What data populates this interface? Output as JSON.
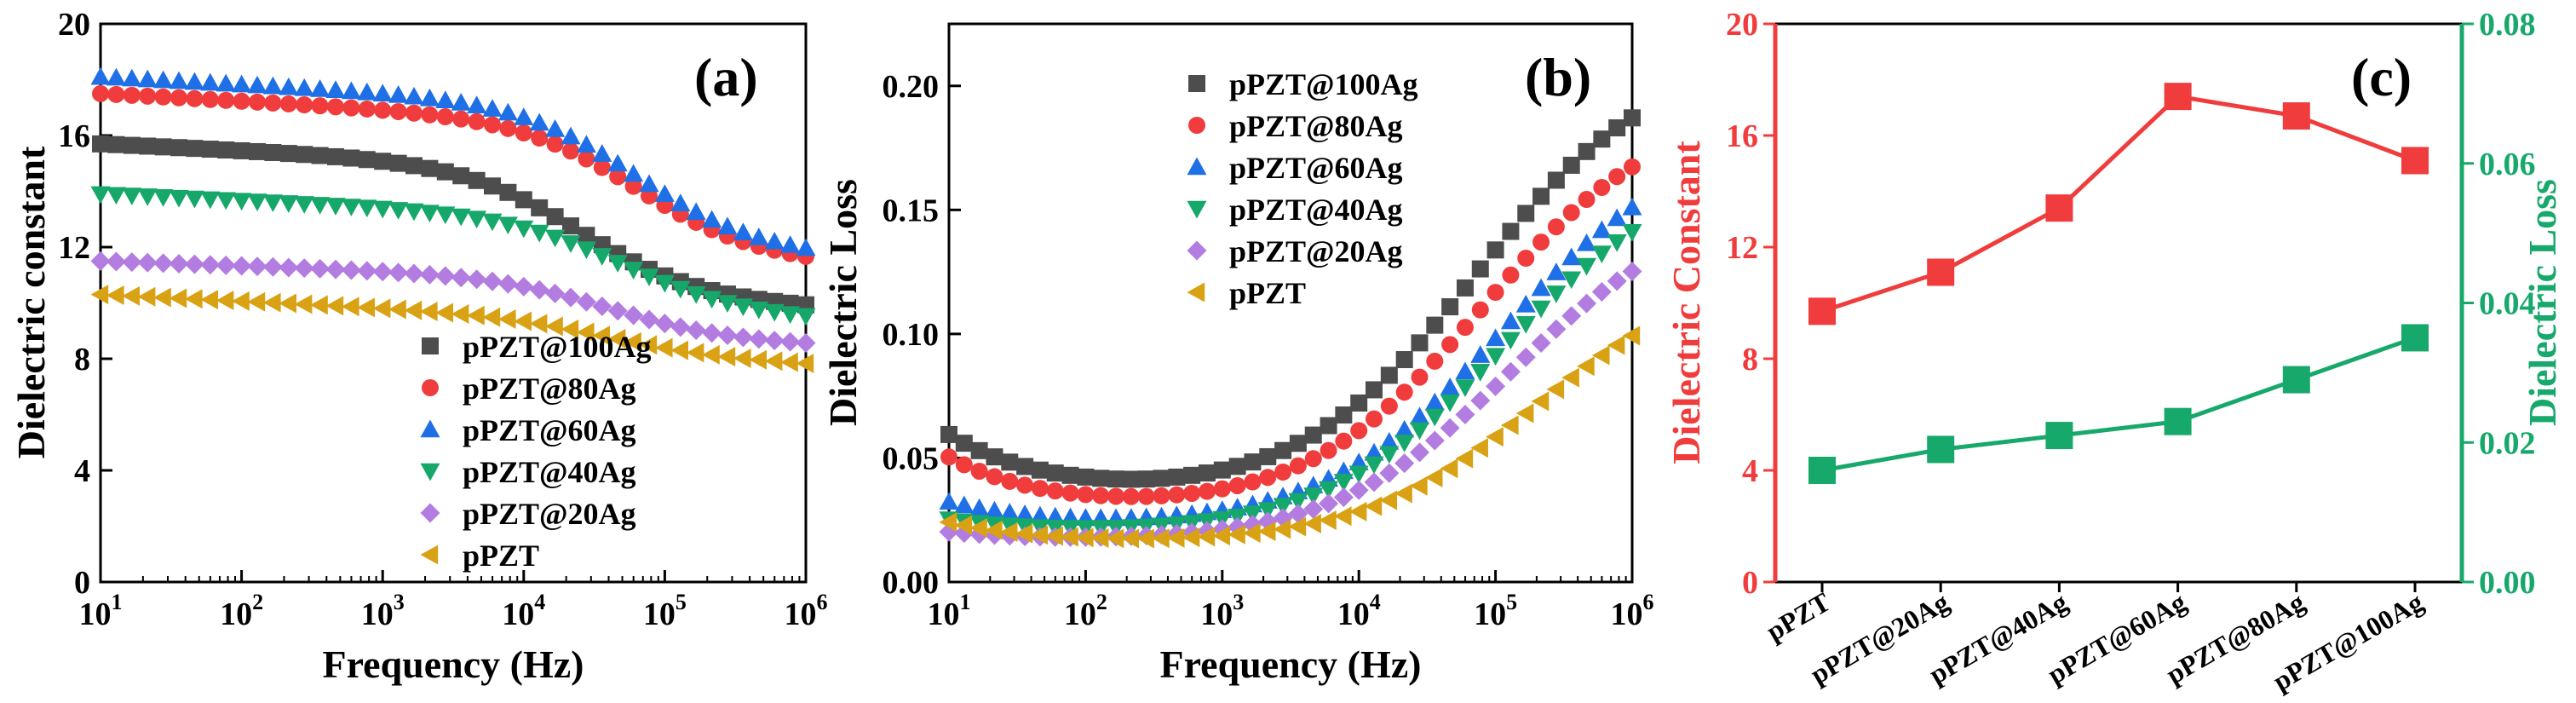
{
  "colors": {
    "pPZT@100Ag": "#4d4d4d",
    "pPZT@80Ag": "#f03c3c",
    "pPZT@60Ag": "#1f6fe6",
    "pPZT@40Ag": "#16a86a",
    "pPZT@20Ag": "#b37ce0",
    "pPZT": "#d9a214",
    "left_axis": "#f03c3c",
    "right_axis": "#17a86b"
  },
  "chart_data": [
    {
      "type": "scatter",
      "panel": "(a)",
      "xlabel": "Frequency (Hz)",
      "ylabel": "Dielectric constant",
      "xscale": "log",
      "xlim": [
        10,
        1000000
      ],
      "ylim": [
        0,
        20
      ],
      "xticks": [
        {
          "base": "10",
          "exp": "1"
        },
        {
          "base": "10",
          "exp": "2"
        },
        {
          "base": "10",
          "exp": "3"
        },
        {
          "base": "10",
          "exp": "4"
        },
        {
          "base": "10",
          "exp": "5"
        },
        {
          "base": "10",
          "exp": "6"
        }
      ],
      "yticks": [
        "0",
        "4",
        "8",
        "12",
        "16",
        "20"
      ],
      "legend_position": "bottom-center",
      "series": [
        {
          "name": "pPZT@100Ag",
          "marker": "square",
          "profile": {
            "start": 15.7,
            "mid": 15.0,
            "end": 10.4,
            "knee": 4.4,
            "k": 1.3
          }
        },
        {
          "name": "pPZT@80Ag",
          "marker": "circle",
          "profile": {
            "start": 17.5,
            "mid": 16.7,
            "end": 12.2,
            "knee": 4.8,
            "k": 1.3
          }
        },
        {
          "name": "pPZT@60Ag",
          "marker": "triangle-up",
          "profile": {
            "start": 18.1,
            "mid": 17.3,
            "end": 12.5,
            "knee": 4.8,
            "k": 1.3
          }
        },
        {
          "name": "pPZT@40Ag",
          "marker": "triangle-down",
          "profile": {
            "start": 13.9,
            "mid": 13.2,
            "end": 10.0,
            "knee": 4.7,
            "k": 1.3
          }
        },
        {
          "name": "pPZT@20Ag",
          "marker": "diamond",
          "profile": {
            "start": 11.5,
            "mid": 11.0,
            "end": 8.9,
            "knee": 4.6,
            "k": 1.2
          }
        },
        {
          "name": "pPZT",
          "marker": "triangle-left",
          "profile": {
            "start": 10.3,
            "mid": 9.6,
            "end": 8.3,
            "knee": 4.6,
            "k": 1.2
          }
        }
      ]
    },
    {
      "type": "scatter",
      "panel": "(b)",
      "xlabel": "Frequency (Hz)",
      "ylabel": "Dielectric Loss",
      "xscale": "log",
      "xlim": [
        10,
        1000000
      ],
      "ylim": [
        0,
        0.225
      ],
      "xticks": [
        {
          "base": "10",
          "exp": "1"
        },
        {
          "base": "10",
          "exp": "2"
        },
        {
          "base": "10",
          "exp": "3"
        },
        {
          "base": "10",
          "exp": "4"
        },
        {
          "base": "10",
          "exp": "5"
        },
        {
          "base": "10",
          "exp": "6"
        }
      ],
      "yticks": [
        "0.00",
        "0.05",
        "0.10",
        "0.15",
        "0.20"
      ],
      "legend_position": "top-left",
      "series": [
        {
          "name": "pPZT@100Ag",
          "marker": "square",
          "profile": {
            "base": 0.034,
            "low": 0.025,
            "lowk": 1.4,
            "high": 0.178,
            "knee": 4.85,
            "k": 1.55
          }
        },
        {
          "name": "pPZT@80Ag",
          "marker": "circle",
          "profile": {
            "base": 0.028,
            "low": 0.022,
            "lowk": 1.4,
            "high": 0.162,
            "knee": 4.9,
            "k": 1.55
          }
        },
        {
          "name": "pPZT@60Ag",
          "marker": "triangle-up",
          "profile": {
            "base": 0.022,
            "low": 0.01,
            "lowk": 1.4,
            "high": 0.15,
            "knee": 5.05,
            "k": 1.55
          }
        },
        {
          "name": "pPZT@40Ag",
          "marker": "triangle-down",
          "profile": {
            "base": 0.019,
            "low": 0.006,
            "lowk": 1.4,
            "high": 0.142,
            "knee": 5.05,
            "k": 1.55
          }
        },
        {
          "name": "pPZT@20Ag",
          "marker": "diamond",
          "profile": {
            "base": 0.016,
            "low": 0.004,
            "lowk": 1.4,
            "high": 0.127,
            "knee": 5.1,
            "k": 1.55
          }
        },
        {
          "name": "pPZT",
          "marker": "triangle-left",
          "profile": {
            "base": 0.015,
            "low": 0.009,
            "lowk": 1.4,
            "high": 0.098,
            "knee": 5.3,
            "k": 1.55
          }
        }
      ]
    },
    {
      "type": "line",
      "panel": "(c)",
      "categories": [
        "pPZT",
        "pPZT@20Ag",
        "pPZT@40Ag",
        "pPZT@60Ag",
        "pPZT@80Ag",
        "pPZT@100Ag"
      ],
      "ylabel_left": "Dielectric Constant",
      "ylabel_right": "Dielectric Loss",
      "ylim_left": [
        0,
        20
      ],
      "ylim_right": [
        0,
        0.08
      ],
      "yticks_left": [
        "0",
        "4",
        "8",
        "12",
        "16",
        "20"
      ],
      "yticks_right": [
        "0.00",
        "0.02",
        "0.04",
        "0.06",
        "0.08"
      ],
      "series": [
        {
          "name": "Dielectric Constant",
          "axis": "left",
          "marker": "square",
          "values": [
            9.7,
            11.1,
            13.4,
            17.4,
            16.7,
            15.1
          ]
        },
        {
          "name": "Dielectric Loss",
          "axis": "right",
          "marker": "square",
          "values": [
            0.016,
            0.019,
            0.021,
            0.023,
            0.029,
            0.035
          ]
        }
      ]
    }
  ]
}
